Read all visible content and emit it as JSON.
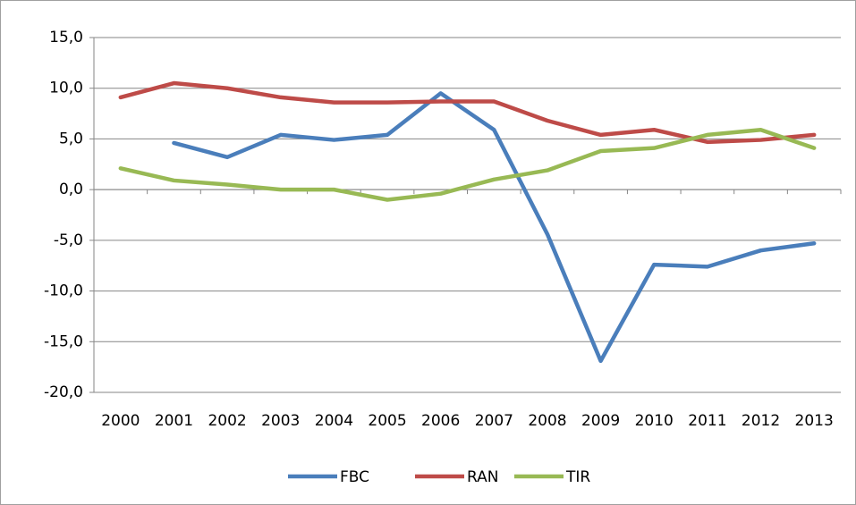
{
  "chart_data": {
    "type": "line",
    "categories": [
      "2000",
      "2001",
      "2002",
      "2003",
      "2004",
      "2005",
      "2006",
      "2007",
      "2008",
      "2009",
      "2010",
      "2011",
      "2012",
      "2013"
    ],
    "series": [
      {
        "name": "FBC",
        "color": "#4a7ebb",
        "values": [
          null,
          4.6,
          3.2,
          5.4,
          4.9,
          5.4,
          9.5,
          5.9,
          -4.4,
          -16.9,
          -7.4,
          -7.6,
          -6.0,
          -5.3
        ]
      },
      {
        "name": "RAN",
        "color": "#be4b48",
        "values": [
          9.1,
          10.5,
          10.0,
          9.1,
          8.6,
          8.6,
          8.7,
          8.7,
          6.8,
          5.4,
          5.9,
          4.7,
          4.9,
          5.4
        ]
      },
      {
        "name": "TIR",
        "color": "#98b954",
        "values": [
          2.1,
          0.9,
          0.5,
          0.0,
          0.0,
          -1.0,
          -0.4,
          1.0,
          1.9,
          3.8,
          4.1,
          5.4,
          5.9,
          4.1
        ]
      }
    ],
    "ylim": [
      -20,
      15
    ],
    "yticks": [
      {
        "value": -20,
        "label": "-20,0"
      },
      {
        "value": -15,
        "label": "-15,0"
      },
      {
        "value": -10,
        "label": "-10,0"
      },
      {
        "value": -5,
        "label": "-5,0"
      },
      {
        "value": 0,
        "label": "0,0"
      },
      {
        "value": 5,
        "label": "5,0"
      },
      {
        "value": 10,
        "label": "10,0"
      },
      {
        "value": 15,
        "label": "15,0"
      }
    ],
    "grid": true,
    "legend": "bottom"
  }
}
